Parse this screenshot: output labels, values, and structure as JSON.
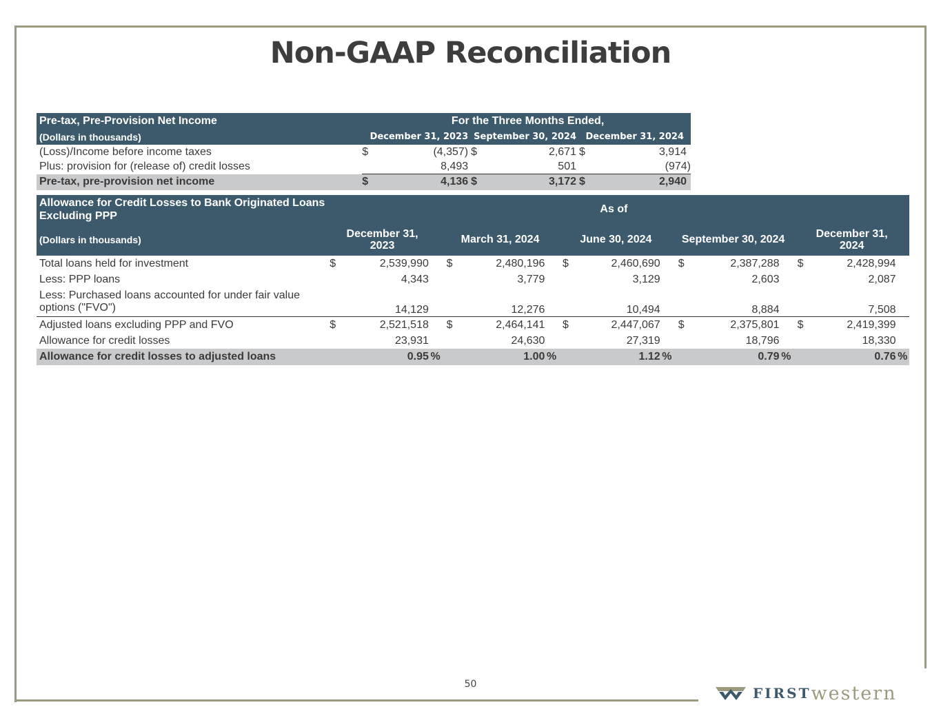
{
  "title": "Non-GAAP Reconciliation",
  "page_number": "50",
  "logo": {
    "first": "FIRST",
    "western": "western"
  },
  "table1": {
    "title": "Pre-tax, Pre-Provision Net Income",
    "group_header": "For the Three Months Ended,",
    "units": "(Dollars in thousands)",
    "columns": [
      "December 31, 2023",
      "September 30, 2024",
      "December 31, 2024"
    ],
    "rows": [
      {
        "label": "(Loss)/Income before income taxes",
        "dollar": [
          "$",
          "$",
          "$"
        ],
        "values": [
          "(4,357)",
          "2,671",
          "3,914"
        ]
      },
      {
        "label": "Plus: provision for (release of) credit losses",
        "dollar": [
          "",
          "",
          ""
        ],
        "values": [
          "8,493",
          "501",
          "(974)"
        ]
      },
      {
        "label": "Pre-tax, pre-provision net income",
        "dollar": [
          "$",
          "$",
          "$"
        ],
        "values": [
          "4,136",
          "3,172",
          "2,940"
        ]
      }
    ]
  },
  "table2": {
    "title": "Allowance for Credit Losses to Bank Originated Loans Excluding PPP",
    "group_header": "As of",
    "units": "(Dollars in thousands)",
    "columns": [
      "December 31, 2023",
      "March 31, 2024",
      "June 30, 2024",
      "September 30, 2024",
      "December 31, 2024"
    ],
    "rows": [
      {
        "label": "Total loans held for investment",
        "dollar": "$",
        "values": [
          "2,539,990",
          "2,480,196",
          "2,460,690",
          "2,387,288",
          "2,428,994"
        ]
      },
      {
        "label": "Less: PPP loans",
        "dollar": "",
        "values": [
          "4,343",
          "3,779",
          "3,129",
          "2,603",
          "2,087"
        ]
      },
      {
        "label": "Less: Purchased loans accounted for under fair value options (\"FVO\")",
        "dollar": "",
        "values": [
          "14,129",
          "12,276",
          "10,494",
          "8,884",
          "7,508"
        ]
      },
      {
        "label": "Adjusted loans excluding PPP and FVO",
        "dollar": "$",
        "values": [
          "2,521,518",
          "2,464,141",
          "2,447,067",
          "2,375,801",
          "2,419,399"
        ]
      },
      {
        "label": "Allowance for credit losses",
        "dollar": "",
        "values": [
          "23,931",
          "24,630",
          "27,319",
          "18,796",
          "18,330"
        ]
      },
      {
        "label": "Allowance for credit losses to adjusted loans",
        "dollar": "",
        "values": [
          "0.95",
          "1.00",
          "1.12",
          "0.79",
          "0.76"
        ],
        "suffix": "%"
      }
    ]
  }
}
